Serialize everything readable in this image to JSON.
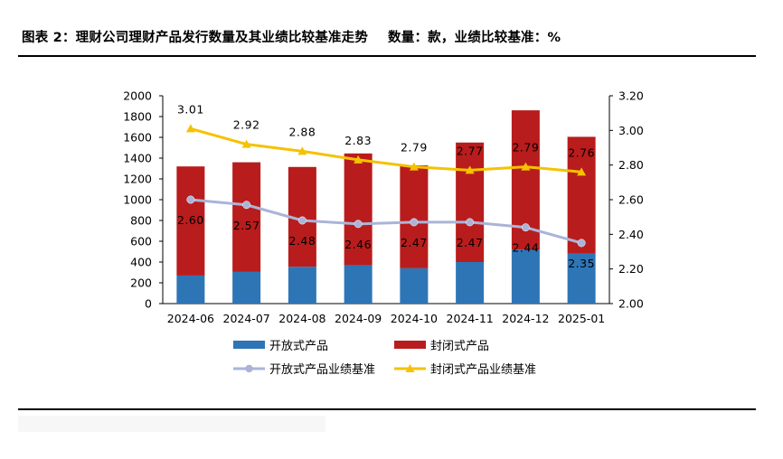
{
  "header": {
    "title": "图表 2：理财公司理财产品发行数量及其业绩比较基准走势",
    "unit_note": "数量：款，业绩比较基准：%"
  },
  "chart_data": {
    "type": "bar",
    "categories": [
      "2024-06",
      "2024-07",
      "2024-08",
      "2024-09",
      "2024-10",
      "2024-11",
      "2024-12",
      "2025-01"
    ],
    "series": [
      {
        "name": "开放式产品",
        "kind": "bar",
        "stack": "count",
        "axis": "left",
        "color": "#2e75b6",
        "values": [
          270,
          305,
          355,
          370,
          340,
          400,
          520,
          480
        ]
      },
      {
        "name": "封闭式产品",
        "kind": "bar",
        "stack": "count",
        "axis": "left",
        "color": "#b91c1c",
        "values": [
          1050,
          1055,
          960,
          1075,
          990,
          1150,
          1340,
          1125
        ]
      },
      {
        "name": "开放式产品业绩基准",
        "kind": "line",
        "axis": "right",
        "color": "#aab4d8",
        "values": [
          2.6,
          2.57,
          2.48,
          2.46,
          2.47,
          2.47,
          2.44,
          2.35
        ],
        "labels": [
          "2.60",
          "2.57",
          "2.48",
          "2.46",
          "2.47",
          "2.47",
          "2.44",
          "2.35"
        ]
      },
      {
        "name": "封闭式产品业绩基准",
        "kind": "line",
        "axis": "right",
        "color": "#f5c200",
        "values": [
          3.01,
          2.92,
          2.88,
          2.83,
          2.79,
          2.77,
          2.79,
          2.76
        ],
        "labels": [
          "3.01",
          "2.92",
          "2.88",
          "2.83",
          "2.79",
          "2.77",
          "2.79",
          "2.76"
        ]
      }
    ],
    "y_left": {
      "min": 0,
      "max": 2000,
      "step": 200,
      "tick_labels": [
        "0",
        "200",
        "400",
        "600",
        "800",
        "1000",
        "1200",
        "1400",
        "1600",
        "1800",
        "2000"
      ]
    },
    "y_right": {
      "min": 2.0,
      "max": 3.2,
      "step": 0.2,
      "tick_labels": [
        "2.00",
        "2.20",
        "2.40",
        "2.60",
        "2.80",
        "3.00",
        "3.20"
      ]
    },
    "grid": false,
    "legend_position": "bottom"
  }
}
